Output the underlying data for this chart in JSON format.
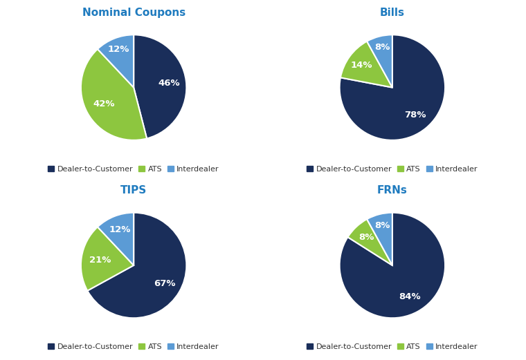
{
  "charts": [
    {
      "title": "Nominal Coupons",
      "values": [
        46,
        42,
        12
      ],
      "labels": [
        "46%",
        "42%",
        "12%"
      ],
      "pct_distances": [
        0.68,
        0.65,
        0.78
      ]
    },
    {
      "title": "Bills",
      "values": [
        78,
        14,
        8
      ],
      "labels": [
        "78%",
        "14%",
        "8%"
      ],
      "pct_distances": [
        0.68,
        0.72,
        0.78
      ]
    },
    {
      "title": "TIPS",
      "values": [
        67,
        21,
        12
      ],
      "labels": [
        "67%",
        "21%",
        "12%"
      ],
      "pct_distances": [
        0.68,
        0.65,
        0.72
      ]
    },
    {
      "title": "FRNs",
      "values": [
        84,
        8,
        8
      ],
      "labels": [
        "84%",
        "8%",
        "8%"
      ],
      "pct_distances": [
        0.68,
        0.72,
        0.78
      ]
    }
  ],
  "colors": [
    "#1a2e5a",
    "#8dc63f",
    "#5b9bd5"
  ],
  "legend_labels": [
    "Dealer-to-Customer",
    "ATS",
    "Interdealer"
  ],
  "title_color": "#1f7bbf",
  "background_color": "#ffffff",
  "title_fontsize": 11,
  "label_fontsize": 9.5,
  "legend_fontsize": 8.0,
  "startangle": 90
}
